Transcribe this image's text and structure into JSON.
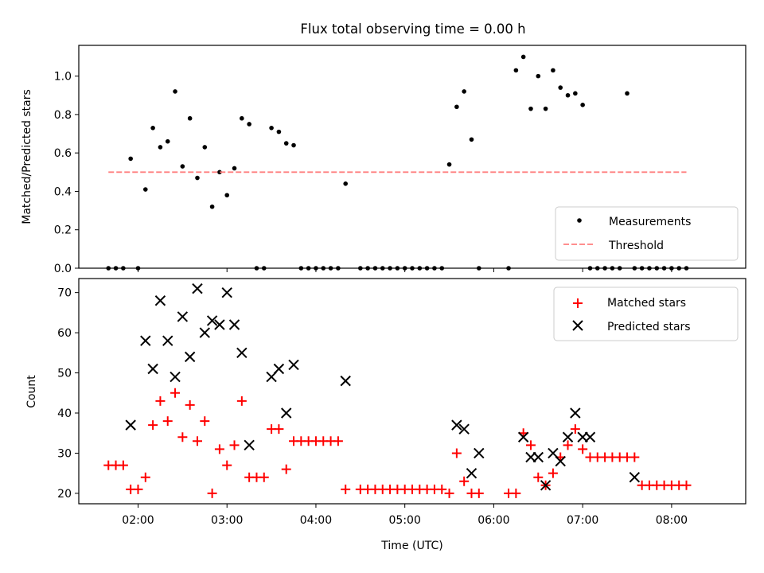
{
  "title": "Flux total observing time = 0.00 h",
  "chart_data": [
    {
      "type": "scatter",
      "ylabel": "Matched/Predicted stars",
      "xlabel": "",
      "ylim": [
        0,
        1.16
      ],
      "xlim": [
        "01:20",
        "08:50"
      ],
      "yticks": [
        0.0,
        0.2,
        0.4,
        0.6,
        0.8,
        1.0
      ],
      "ytick_labels": [
        "0.0",
        "0.2",
        "0.4",
        "0.6",
        "0.8",
        "1.0"
      ],
      "grid": false,
      "legend_position": "bottom-right",
      "series": [
        {
          "name": "Measurements",
          "marker": "dot",
          "color": "#000000",
          "x": [
            "01:40",
            "01:45",
            "01:50",
            "01:55",
            "02:00",
            "02:05",
            "02:10",
            "02:15",
            "02:20",
            "02:25",
            "02:30",
            "02:35",
            "02:40",
            "02:45",
            "02:50",
            "02:55",
            "03:00",
            "03:05",
            "03:10",
            "03:15",
            "03:20",
            "03:25",
            "03:30",
            "03:35",
            "03:40",
            "03:45",
            "03:50",
            "03:55",
            "04:00",
            "04:05",
            "04:10",
            "04:15",
            "04:20",
            "04:30",
            "04:35",
            "04:40",
            "04:45",
            "04:50",
            "04:55",
            "05:00",
            "05:05",
            "05:10",
            "05:15",
            "05:20",
            "05:25",
            "05:30",
            "05:35",
            "05:40",
            "05:45",
            "05:50",
            "06:10",
            "06:15",
            "06:20",
            "06:25",
            "06:30",
            "06:35",
            "06:40",
            "06:45",
            "06:50",
            "06:55",
            "07:00",
            "07:05",
            "07:10",
            "07:15",
            "07:20",
            "07:25",
            "07:30",
            "07:35",
            "07:40",
            "07:45",
            "07:50",
            "07:55",
            "08:00",
            "08:05",
            "08:10"
          ],
          "y": [
            0,
            0,
            0,
            0.57,
            0,
            0.41,
            0.73,
            0.63,
            0.66,
            0.92,
            0.53,
            0.78,
            0.47,
            0.63,
            0.32,
            0.5,
            0.38,
            0.52,
            0.78,
            0.75,
            0,
            0,
            0.73,
            0.71,
            0.65,
            0.64,
            0,
            0,
            0,
            0,
            0,
            0,
            0.44,
            0,
            0,
            0,
            0,
            0,
            0,
            0,
            0,
            0,
            0,
            0,
            0,
            0.54,
            0.84,
            0.92,
            0.67,
            0,
            0,
            1.03,
            1.1,
            0.83,
            1.0,
            0.83,
            1.03,
            0.94,
            0.9,
            0.91,
            0.85,
            0,
            0,
            0,
            0,
            0,
            0.91,
            0,
            0,
            0,
            0,
            0,
            0,
            0,
            0
          ]
        },
        {
          "name": "Threshold",
          "type": "line",
          "dash": "dashed",
          "color": "#ff7f7f",
          "x": [
            "01:40",
            "08:10"
          ],
          "y": [
            0.5,
            0.5
          ]
        }
      ]
    },
    {
      "type": "scatter",
      "xlabel": "Time (UTC)",
      "ylabel": "Count",
      "ylim": [
        17.4,
        73.5
      ],
      "xlim": [
        "01:20",
        "08:50"
      ],
      "yticks": [
        20,
        30,
        40,
        50,
        60,
        70
      ],
      "ytick_labels": [
        "20",
        "30",
        "40",
        "50",
        "60",
        "70"
      ],
      "xticks": [
        "02:00",
        "03:00",
        "04:00",
        "05:00",
        "06:00",
        "07:00",
        "08:00"
      ],
      "xtick_labels": [
        "02:00",
        "03:00",
        "04:00",
        "05:00",
        "06:00",
        "07:00",
        "08:00"
      ],
      "grid": false,
      "legend_position": "top-right",
      "series": [
        {
          "name": "Matched stars",
          "marker": "plus",
          "color": "#ff0000",
          "x": [
            "01:40",
            "01:45",
            "01:50",
            "01:55",
            "02:00",
            "02:05",
            "02:10",
            "02:15",
            "02:20",
            "02:25",
            "02:30",
            "02:35",
            "02:40",
            "02:45",
            "02:50",
            "02:55",
            "03:00",
            "03:05",
            "03:10",
            "03:15",
            "03:20",
            "03:25",
            "03:30",
            "03:35",
            "03:40",
            "03:45",
            "03:50",
            "03:55",
            "04:00",
            "04:05",
            "04:10",
            "04:15",
            "04:20",
            "04:30",
            "04:35",
            "04:40",
            "04:45",
            "04:50",
            "04:55",
            "05:00",
            "05:05",
            "05:10",
            "05:15",
            "05:20",
            "05:25",
            "05:30",
            "05:35",
            "05:40",
            "05:45",
            "05:50",
            "06:10",
            "06:15",
            "06:20",
            "06:25",
            "06:30",
            "06:35",
            "06:40",
            "06:45",
            "06:50",
            "06:55",
            "07:00",
            "07:05",
            "07:10",
            "07:15",
            "07:20",
            "07:25",
            "07:30",
            "07:35",
            "07:40",
            "07:45",
            "07:50",
            "07:55",
            "08:00",
            "08:05",
            "08:10"
          ],
          "y": [
            27,
            27,
            27,
            21,
            21,
            24,
            37,
            43,
            38,
            45,
            34,
            42,
            33,
            38,
            20,
            31,
            27,
            32,
            43,
            24,
            24,
            24,
            36,
            36,
            26,
            33,
            33,
            33,
            33,
            33,
            33,
            33,
            21,
            21,
            21,
            21,
            21,
            21,
            21,
            21,
            21,
            21,
            21,
            21,
            21,
            20,
            30,
            23,
            20,
            20,
            20,
            20,
            35,
            32,
            24,
            22,
            25,
            29,
            32,
            36,
            31,
            29,
            29,
            29,
            29,
            29,
            29,
            29,
            22,
            22,
            22,
            22,
            22,
            22,
            22
          ]
        },
        {
          "name": "Predicted stars",
          "marker": "x",
          "color": "#000000",
          "x": [
            "01:55",
            "02:05",
            "02:10",
            "02:15",
            "02:20",
            "02:25",
            "02:30",
            "02:35",
            "02:40",
            "02:45",
            "02:50",
            "02:55",
            "03:00",
            "03:05",
            "03:10",
            "03:15",
            "03:30",
            "03:35",
            "03:40",
            "03:45",
            "04:20",
            "05:35",
            "05:40",
            "05:45",
            "05:50",
            "06:20",
            "06:25",
            "06:30",
            "06:35",
            "06:40",
            "06:45",
            "06:50",
            "06:55",
            "07:00",
            "07:05",
            "07:35"
          ],
          "y": [
            37,
            58,
            51,
            68,
            58,
            49,
            64,
            54,
            71,
            60,
            63,
            62,
            70,
            62,
            55,
            32,
            49,
            51,
            40,
            52,
            48,
            37,
            36,
            25,
            30,
            34,
            29,
            29,
            22,
            30,
            28,
            34,
            40,
            34,
            34,
            24
          ]
        }
      ]
    }
  ]
}
